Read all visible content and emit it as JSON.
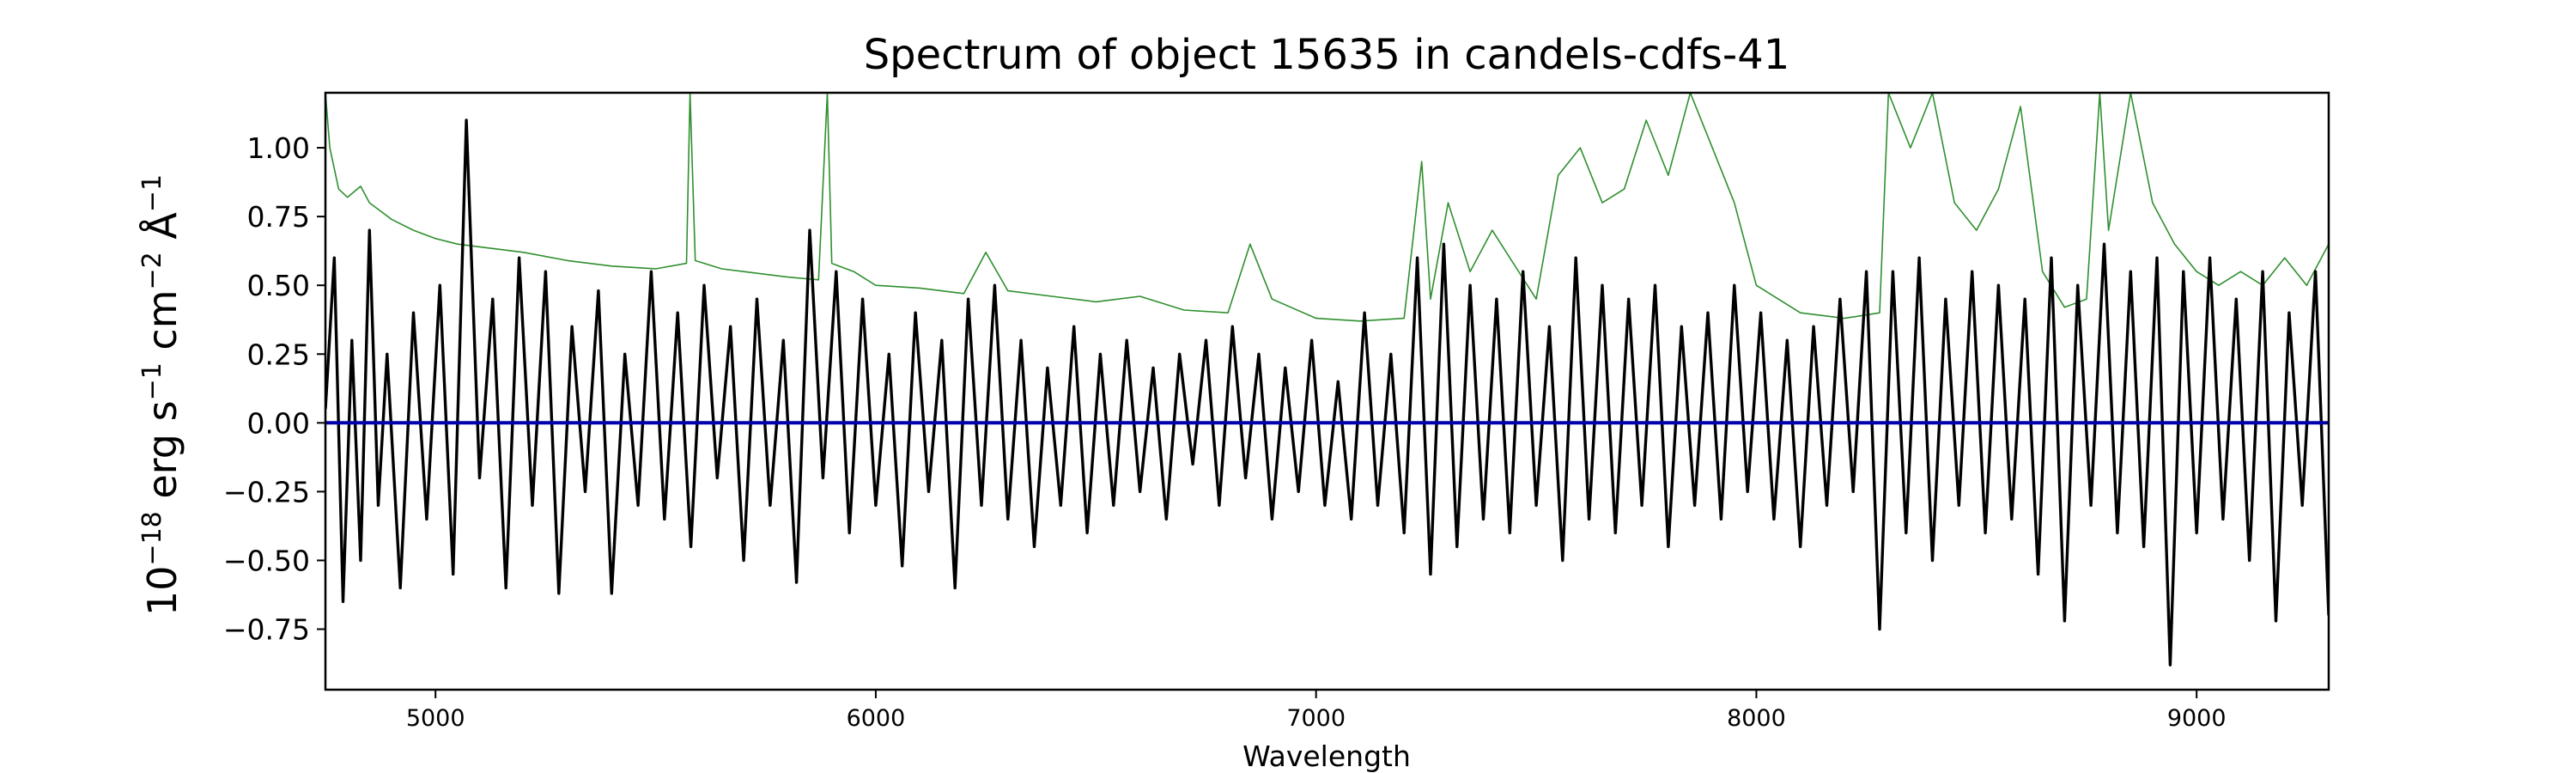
{
  "chart_data": {
    "type": "line",
    "title": "Spectrum of object 15635 in candels-cdfs-41",
    "xlabel": "Wavelength",
    "ylabel_parts": [
      "10",
      "−18",
      " erg s",
      "−1",
      " cm",
      "−2",
      " Å",
      "−1"
    ],
    "xlim": [
      4750,
      9300
    ],
    "ylim": [
      -0.97,
      1.2
    ],
    "xticks": [
      5000,
      6000,
      7000,
      8000,
      9000
    ],
    "xtick_labels": [
      "5000",
      "6000",
      "7000",
      "8000",
      "9000"
    ],
    "yticks": [
      1.0,
      0.75,
      0.5,
      0.25,
      0.0,
      -0.25,
      -0.5,
      -0.75
    ],
    "ytick_labels": [
      "1.00",
      "0.75",
      "0.50",
      "0.25",
      "0.00",
      "−0.25",
      "−0.50",
      "−0.75"
    ],
    "grid": false,
    "series": [
      {
        "role": "error",
        "color": "#2f8f2f",
        "x": [
          4750,
          4760,
          4780,
          4800,
          4830,
          4850,
          4900,
          4950,
          5000,
          5050,
          5100,
          5200,
          5300,
          5400,
          5500,
          5570,
          5578,
          5590,
          5650,
          5700,
          5800,
          5870,
          5890,
          5900,
          5950,
          6000,
          6100,
          6200,
          6250,
          6300,
          6400,
          6500,
          6600,
          6700,
          6800,
          6850,
          6900,
          7000,
          7100,
          7200,
          7240,
          7260,
          7300,
          7350,
          7400,
          7500,
          7550,
          7600,
          7650,
          7700,
          7750,
          7800,
          7850,
          7900,
          7950,
          8000,
          8100,
          8200,
          8280,
          8300,
          8350,
          8400,
          8450,
          8500,
          8550,
          8600,
          8650,
          8700,
          8750,
          8780,
          8800,
          8850,
          8900,
          8950,
          9000,
          9050,
          9100,
          9150,
          9200,
          9250,
          9300
        ],
        "y": [
          1.2,
          1.0,
          0.85,
          0.82,
          0.86,
          0.8,
          0.74,
          0.7,
          0.67,
          0.65,
          0.64,
          0.62,
          0.59,
          0.57,
          0.56,
          0.58,
          1.2,
          0.59,
          0.56,
          0.55,
          0.53,
          0.52,
          1.2,
          0.58,
          0.55,
          0.5,
          0.49,
          0.47,
          0.62,
          0.48,
          0.46,
          0.44,
          0.46,
          0.41,
          0.4,
          0.65,
          0.45,
          0.38,
          0.37,
          0.38,
          0.95,
          0.45,
          0.8,
          0.55,
          0.7,
          0.45,
          0.9,
          1.0,
          0.8,
          0.85,
          1.1,
          0.9,
          1.2,
          1.0,
          0.8,
          0.5,
          0.4,
          0.38,
          0.4,
          1.2,
          1.0,
          1.2,
          0.8,
          0.7,
          0.85,
          1.15,
          0.55,
          0.42,
          0.45,
          1.2,
          0.7,
          1.2,
          0.8,
          0.65,
          0.55,
          0.5,
          0.55,
          0.5,
          0.6,
          0.5,
          0.65
        ]
      },
      {
        "role": "flux",
        "color": "#000000",
        "x": [
          4750,
          4770,
          4790,
          4810,
          4830,
          4850,
          4870,
          4890,
          4920,
          4950,
          4980,
          5010,
          5040,
          5070,
          5100,
          5130,
          5160,
          5190,
          5220,
          5250,
          5280,
          5310,
          5340,
          5370,
          5400,
          5430,
          5460,
          5490,
          5520,
          5550,
          5580,
          5610,
          5640,
          5670,
          5700,
          5730,
          5760,
          5790,
          5820,
          5850,
          5880,
          5910,
          5940,
          5970,
          6000,
          6030,
          6060,
          6090,
          6120,
          6150,
          6180,
          6210,
          6240,
          6270,
          6300,
          6330,
          6360,
          6390,
          6420,
          6450,
          6480,
          6510,
          6540,
          6570,
          6600,
          6630,
          6660,
          6690,
          6720,
          6750,
          6780,
          6810,
          6840,
          6870,
          6900,
          6930,
          6960,
          6990,
          7020,
          7050,
          7080,
          7110,
          7140,
          7170,
          7200,
          7230,
          7260,
          7290,
          7320,
          7350,
          7380,
          7410,
          7440,
          7470,
          7500,
          7530,
          7560,
          7590,
          7620,
          7650,
          7680,
          7710,
          7740,
          7770,
          7800,
          7830,
          7860,
          7890,
          7920,
          7950,
          7980,
          8010,
          8040,
          8070,
          8100,
          8130,
          8160,
          8190,
          8220,
          8250,
          8280,
          8310,
          8340,
          8370,
          8400,
          8430,
          8460,
          8490,
          8520,
          8550,
          8580,
          8610,
          8640,
          8670,
          8700,
          8730,
          8760,
          8790,
          8820,
          8850,
          8880,
          8910,
          8940,
          8970,
          9000,
          9030,
          9060,
          9090,
          9120,
          9150,
          9180,
          9210,
          9240,
          9270,
          9300
        ],
        "y": [
          0.05,
          0.6,
          -0.65,
          0.3,
          -0.5,
          0.7,
          -0.3,
          0.25,
          -0.6,
          0.4,
          -0.35,
          0.5,
          -0.55,
          1.1,
          -0.2,
          0.45,
          -0.6,
          0.6,
          -0.3,
          0.55,
          -0.62,
          0.35,
          -0.25,
          0.48,
          -0.62,
          0.25,
          -0.3,
          0.55,
          -0.35,
          0.4,
          -0.45,
          0.5,
          -0.2,
          0.35,
          -0.5,
          0.45,
          -0.3,
          0.3,
          -0.58,
          0.7,
          -0.2,
          0.55,
          -0.4,
          0.45,
          -0.3,
          0.25,
          -0.52,
          0.4,
          -0.25,
          0.3,
          -0.6,
          0.45,
          -0.3,
          0.5,
          -0.35,
          0.3,
          -0.45,
          0.2,
          -0.3,
          0.35,
          -0.4,
          0.25,
          -0.3,
          0.3,
          -0.25,
          0.2,
          -0.35,
          0.25,
          -0.15,
          0.3,
          -0.3,
          0.35,
          -0.2,
          0.25,
          -0.35,
          0.2,
          -0.25,
          0.3,
          -0.3,
          0.15,
          -0.35,
          0.4,
          -0.3,
          0.25,
          -0.4,
          0.6,
          -0.55,
          0.65,
          -0.45,
          0.5,
          -0.35,
          0.45,
          -0.4,
          0.55,
          -0.3,
          0.35,
          -0.5,
          0.6,
          -0.35,
          0.5,
          -0.4,
          0.45,
          -0.3,
          0.5,
          -0.45,
          0.35,
          -0.3,
          0.4,
          -0.35,
          0.5,
          -0.25,
          0.4,
          -0.35,
          0.3,
          -0.45,
          0.35,
          -0.3,
          0.45,
          -0.25,
          0.55,
          -0.75,
          0.55,
          -0.4,
          0.6,
          -0.5,
          0.45,
          -0.3,
          0.55,
          -0.4,
          0.5,
          -0.35,
          0.45,
          -0.55,
          0.6,
          -0.72,
          0.5,
          -0.3,
          0.65,
          -0.4,
          0.55,
          -0.45,
          0.6,
          -0.88,
          0.55,
          -0.4,
          0.6,
          -0.35,
          0.45,
          -0.5,
          0.55,
          -0.72,
          0.4,
          -0.3,
          0.55,
          -0.7
        ]
      },
      {
        "role": "zero",
        "color": "#0000aa",
        "x": [
          4750,
          9300
        ],
        "y": [
          0.0,
          0.0
        ]
      }
    ]
  }
}
